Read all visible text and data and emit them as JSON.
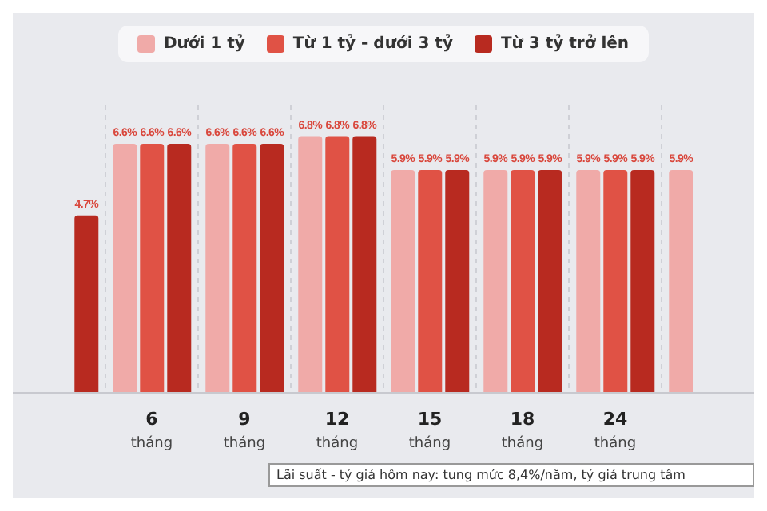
{
  "chart_data": {
    "type": "bar",
    "categories": [
      null,
      "6 tháng",
      "9 tháng",
      "12 tháng",
      "15 tháng",
      "18 tháng",
      "24 tháng",
      null
    ],
    "series": [
      {
        "name": "Dưới 1 tỷ",
        "color": "#f0aaa8",
        "values": [
          null,
          6.6,
          6.6,
          6.8,
          5.9,
          5.9,
          5.9,
          5.9
        ],
        "value_labels": [
          null,
          "6.6%",
          "6.6%",
          "6.8%",
          "5.9%",
          "5.9%",
          "5.9%",
          "5.9%"
        ]
      },
      {
        "name": "Từ 1 tỷ - dưới 3 tỷ",
        "color": "#e05245",
        "values": [
          null,
          6.6,
          6.6,
          6.8,
          5.9,
          5.9,
          5.9,
          null
        ],
        "value_labels": [
          null,
          "6.6%",
          "6.6%",
          "6.8%",
          "5.9%",
          "5.9%",
          "5.9%",
          null
        ]
      },
      {
        "name": "Từ 3 tỷ trở lên",
        "color": "#b82a20",
        "values": [
          4.7,
          6.6,
          6.6,
          6.8,
          5.9,
          5.9,
          5.9,
          null
        ],
        "value_labels": [
          "4.7%",
          "6.6%",
          "6.6%",
          "6.8%",
          "5.9%",
          "5.9%",
          "5.9%",
          null
        ]
      }
    ],
    "grid": "x",
    "legend": "top",
    "annotations": [
      "Lãi suất - tỷ giá hôm nay: tung mức 8,4%/năm, tỷ giá trung tâm"
    ]
  }
}
